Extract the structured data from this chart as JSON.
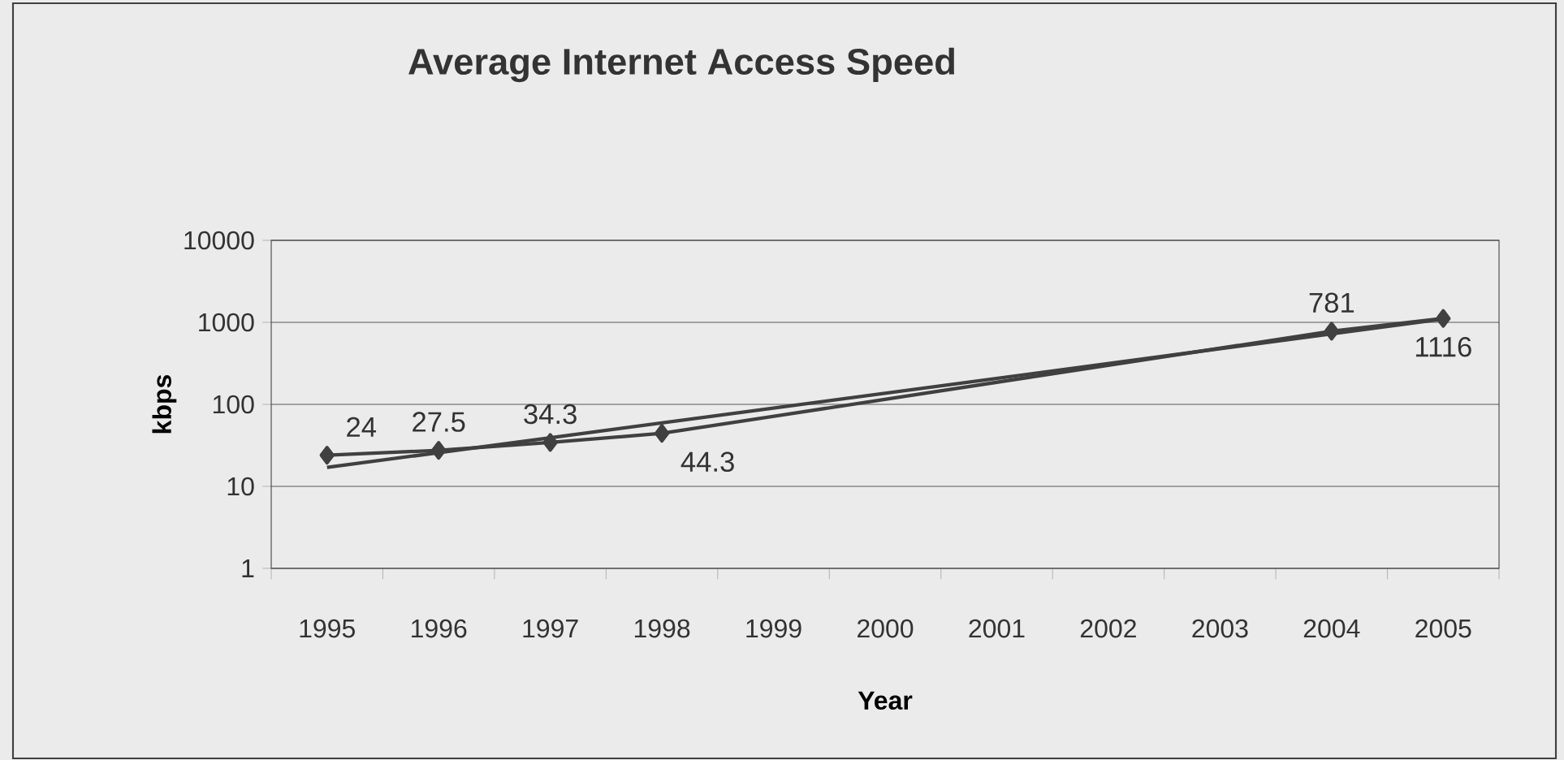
{
  "chart_data": {
    "type": "line",
    "title": "Average Internet Access Speed",
    "xlabel": "Year",
    "ylabel": "kbps",
    "categories": [
      "1995",
      "1996",
      "1997",
      "1998",
      "1999",
      "2000",
      "2001",
      "2002",
      "2003",
      "2004",
      "2005"
    ],
    "series": [
      {
        "values": [
          24,
          27.5,
          34.3,
          44.3,
          null,
          null,
          null,
          null,
          null,
          781,
          1116
        ],
        "value_labels": [
          "24",
          "27.5",
          "34.3",
          "44.3",
          null,
          null,
          null,
          null,
          null,
          "781",
          "1116"
        ],
        "color": "#404040",
        "marker": "diamond"
      },
      {
        "values": [
          17,
          null,
          null,
          null,
          null,
          null,
          null,
          null,
          null,
          null,
          1100
        ],
        "color": "#404040",
        "marker": "none"
      }
    ],
    "ylim": [
      1,
      10000
    ],
    "yticks": [
      1,
      10,
      100,
      1000,
      10000
    ],
    "log": "y",
    "grid": "y"
  }
}
